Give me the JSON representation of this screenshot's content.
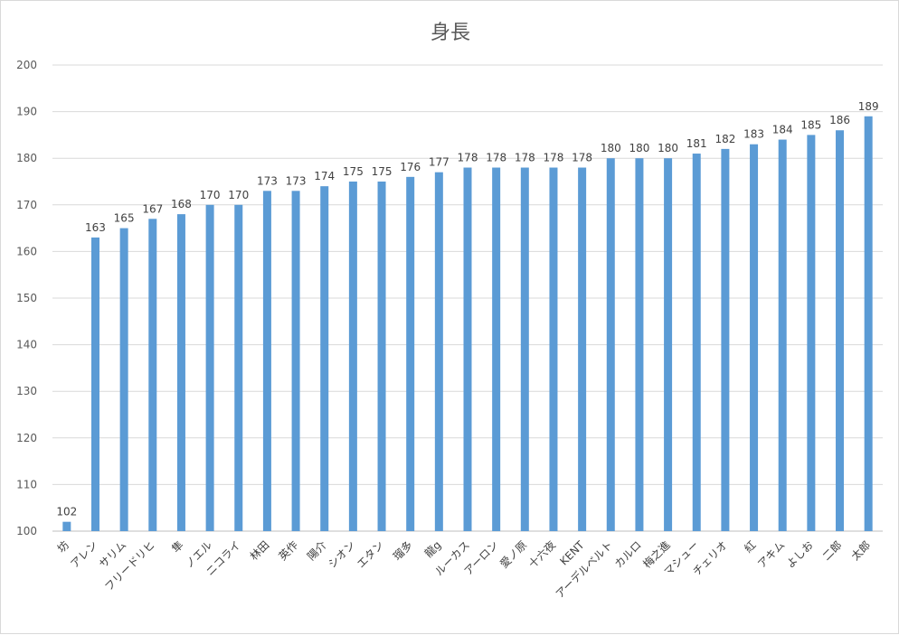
{
  "chart_data": {
    "type": "bar",
    "title": "身長",
    "xlabel": "",
    "ylabel": "",
    "ylim": [
      100,
      200
    ],
    "yticks": [
      100,
      110,
      120,
      130,
      140,
      150,
      160,
      170,
      180,
      190,
      200
    ],
    "grid": true,
    "legend": "none",
    "colors": {
      "bar": "#5b9bd5",
      "grid": "#d9d9d9",
      "axis": "#bfbfbf"
    },
    "categories": [
      "坊",
      "アレン",
      "サリム",
      "フリードリヒ",
      "隼",
      "ノエル",
      "ニコライ",
      "林田",
      "英作",
      "陽介",
      "シオン",
      "エタン",
      "瑠多",
      "龍g",
      "ルーカス",
      "アーロン",
      "愛ノ原",
      "十六夜",
      "KENT",
      "アーデルベルト",
      "カルロ",
      "梅之進",
      "マシュー",
      "チェリオ",
      "紅",
      "アキム",
      "よしお",
      "二郎",
      "太郎"
    ],
    "values": [
      102,
      163,
      165,
      167,
      168,
      170,
      170,
      173,
      173,
      174,
      175,
      175,
      176,
      177,
      178,
      178,
      178,
      178,
      178,
      180,
      180,
      180,
      181,
      182,
      183,
      184,
      185,
      186,
      189
    ]
  }
}
